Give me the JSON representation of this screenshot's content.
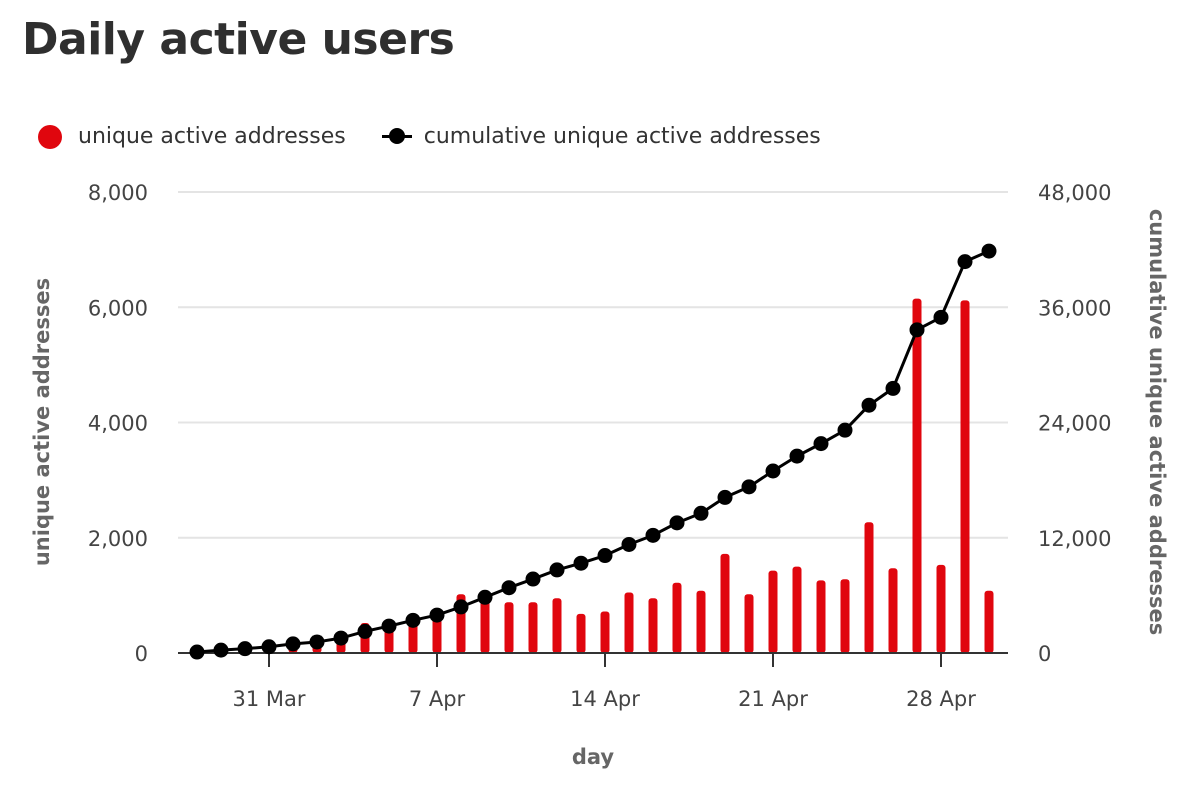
{
  "chart_data": {
    "type": "bar+line",
    "title": "Daily active users",
    "xlabel": "day",
    "ylabel_left": "unique active addresses",
    "ylabel_right": "cumulative unique active addresses",
    "ylim_left": [
      0,
      8000
    ],
    "ylim_right": [
      0,
      48000
    ],
    "left_ticks": [
      0,
      2000,
      4000,
      6000,
      8000
    ],
    "left_tick_labels": [
      "0",
      "2,000",
      "4,000",
      "6,000",
      "8,000"
    ],
    "right_ticks": [
      0,
      12000,
      24000,
      36000,
      48000
    ],
    "right_tick_labels": [
      "0",
      "12,000",
      "24,000",
      "36,000",
      "48,000"
    ],
    "x_tick_labels": [
      {
        "label": "31 Mar",
        "day_index": 3
      },
      {
        "label": "7 Apr",
        "day_index": 10
      },
      {
        "label": "14 Apr",
        "day_index": 17
      },
      {
        "label": "21 Apr",
        "day_index": 24
      },
      {
        "label": "28 Apr",
        "day_index": 31
      }
    ],
    "grid": true,
    "legend_position": "top-left",
    "series": [
      {
        "name": "unique active addresses",
        "kind": "bar",
        "axis": "left",
        "color": "#e0060e",
        "values": [
          30,
          30,
          100,
          100,
          180,
          200,
          320,
          520,
          550,
          560,
          600,
          1020,
          900,
          880,
          880,
          950,
          680,
          720,
          1050,
          950,
          1220,
          1080,
          1720,
          1020,
          1430,
          1500,
          1260,
          1280,
          2270,
          1470,
          6150,
          1530,
          6120,
          1080
        ]
      },
      {
        "name": "cumulative unique active addresses",
        "kind": "line",
        "axis": "right",
        "color": "#000000",
        "values": [
          100,
          300,
          450,
          650,
          950,
          1150,
          1550,
          2250,
          2800,
          3400,
          3950,
          4800,
          5800,
          6800,
          7700,
          8650,
          9350,
          10150,
          11300,
          12250,
          13550,
          14550,
          16200,
          17300,
          18950,
          20500,
          21800,
          23200,
          25800,
          27550,
          33650,
          34950,
          40750,
          41850
        ]
      }
    ]
  }
}
